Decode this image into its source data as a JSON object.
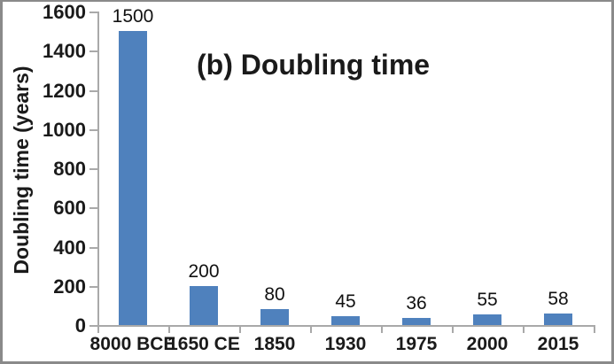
{
  "chart_data": {
    "type": "bar",
    "title": "(b) Doubling time",
    "ylabel": "Doubling time (years)",
    "xlabel": "",
    "categories": [
      "8000 BCE",
      "1650 CE",
      "1850",
      "1930",
      "1975",
      "2000",
      "2015"
    ],
    "values": [
      1500,
      200,
      80,
      45,
      36,
      55,
      58
    ],
    "data_labels": [
      "1500",
      "200",
      "80",
      "45",
      "36",
      "55",
      "58"
    ],
    "ylim": [
      0,
      1600
    ],
    "ytick_interval": 200,
    "yticks": [
      0,
      200,
      400,
      600,
      800,
      1000,
      1200,
      1400,
      1600
    ],
    "grid": false,
    "legend": "none",
    "colors": {
      "bar": "#4F81BD",
      "axis": "#A9A9A9",
      "frame": "#8A8A8A",
      "text": "#1A1A1A",
      "background": "#FFFFFF"
    }
  }
}
